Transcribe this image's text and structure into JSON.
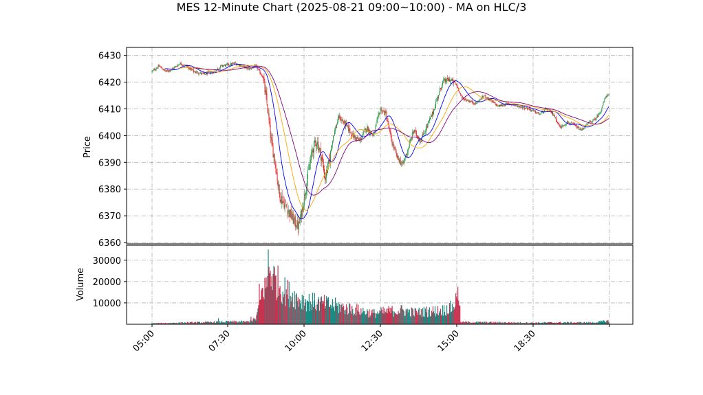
{
  "chart_data": {
    "type": "candlestick",
    "title": "MES 12-Minute Chart (2025-08-21 09:00~10:00) - MA on HLC/3",
    "price_panel": {
      "ylabel": "Price",
      "ylim": [
        6359.5,
        6433
      ],
      "yticks": [
        6360,
        6370,
        6380,
        6390,
        6400,
        6410,
        6420,
        6430
      ]
    },
    "volume_panel": {
      "ylabel": "Volume",
      "ylim": [
        0,
        37000
      ],
      "yticks": [
        10000,
        20000,
        30000
      ]
    },
    "x_axis": {
      "start_time": "04:00",
      "ticks": [
        "05:00",
        "07:30",
        "10:00",
        "12:30",
        "15:00",
        "18:30",
        ""
      ]
    },
    "colors": {
      "up": "#2e9b4f",
      "down": "#e0282b",
      "ma_fast": "#0000ff",
      "ma_mid": "#ffa500",
      "ma_slow": "#800080",
      "vol_up": "#1a8a82",
      "vol_down": "#c8324f"
    },
    "price_anchors": [
      {
        "t": 0,
        "p": 6424
      },
      {
        "t": 10,
        "p": 6426
      },
      {
        "t": 20,
        "p": 6424
      },
      {
        "t": 30,
        "p": 6425
      },
      {
        "t": 40,
        "p": 6427
      },
      {
        "t": 50,
        "p": 6426
      },
      {
        "t": 60,
        "p": 6424
      },
      {
        "t": 75,
        "p": 6423
      },
      {
        "t": 90,
        "p": 6424
      },
      {
        "t": 100,
        "p": 6426
      },
      {
        "t": 120,
        "p": 6427
      },
      {
        "t": 140,
        "p": 6425
      },
      {
        "t": 150,
        "p": 6426
      },
      {
        "t": 160,
        "p": 6422
      },
      {
        "t": 166,
        "p": 6412
      },
      {
        "t": 172,
        "p": 6398
      },
      {
        "t": 178,
        "p": 6390
      },
      {
        "t": 184,
        "p": 6378
      },
      {
        "t": 190,
        "p": 6375
      },
      {
        "t": 197,
        "p": 6372
      },
      {
        "t": 205,
        "p": 6368
      },
      {
        "t": 212,
        "p": 6366
      },
      {
        "t": 218,
        "p": 6374
      },
      {
        "t": 225,
        "p": 6385
      },
      {
        "t": 232,
        "p": 6395
      },
      {
        "t": 238,
        "p": 6398
      },
      {
        "t": 245,
        "p": 6392
      },
      {
        "t": 250,
        "p": 6384
      },
      {
        "t": 256,
        "p": 6390
      },
      {
        "t": 262,
        "p": 6400
      },
      {
        "t": 270,
        "p": 6407
      },
      {
        "t": 280,
        "p": 6404
      },
      {
        "t": 290,
        "p": 6400
      },
      {
        "t": 300,
        "p": 6398
      },
      {
        "t": 310,
        "p": 6403
      },
      {
        "t": 320,
        "p": 6400
      },
      {
        "t": 330,
        "p": 6410
      },
      {
        "t": 338,
        "p": 6408
      },
      {
        "t": 346,
        "p": 6398
      },
      {
        "t": 354,
        "p": 6392
      },
      {
        "t": 362,
        "p": 6389
      },
      {
        "t": 370,
        "p": 6395
      },
      {
        "t": 378,
        "p": 6402
      },
      {
        "t": 388,
        "p": 6398
      },
      {
        "t": 398,
        "p": 6404
      },
      {
        "t": 405,
        "p": 6408
      },
      {
        "t": 412,
        "p": 6414
      },
      {
        "t": 420,
        "p": 6420
      },
      {
        "t": 430,
        "p": 6421
      },
      {
        "t": 440,
        "p": 6419
      },
      {
        "t": 448,
        "p": 6414
      },
      {
        "t": 458,
        "p": 6413
      },
      {
        "t": 468,
        "p": 6412
      },
      {
        "t": 480,
        "p": 6415
      },
      {
        "t": 490,
        "p": 6413
      },
      {
        "t": 500,
        "p": 6411
      },
      {
        "t": 515,
        "p": 6412
      },
      {
        "t": 530,
        "p": 6411
      },
      {
        "t": 545,
        "p": 6410
      },
      {
        "t": 560,
        "p": 6408
      },
      {
        "t": 570,
        "p": 6410
      },
      {
        "t": 580,
        "p": 6408
      },
      {
        "t": 590,
        "p": 6403
      },
      {
        "t": 600,
        "p": 6405
      },
      {
        "t": 610,
        "p": 6404
      },
      {
        "t": 620,
        "p": 6402
      },
      {
        "t": 632,
        "p": 6405
      },
      {
        "t": 640,
        "p": 6406
      },
      {
        "t": 648,
        "p": 6409
      },
      {
        "t": 656,
        "p": 6415
      }
    ],
    "volume_anchors": [
      {
        "t": 0,
        "v": 400
      },
      {
        "t": 40,
        "v": 700
      },
      {
        "t": 80,
        "v": 900
      },
      {
        "t": 110,
        "v": 1200
      },
      {
        "t": 140,
        "v": 1200
      },
      {
        "t": 150,
        "v": 2500
      },
      {
        "t": 155,
        "v": 9000
      },
      {
        "t": 160,
        "v": 16000
      },
      {
        "t": 165,
        "v": 19000
      },
      {
        "t": 170,
        "v": 26000
      },
      {
        "t": 175,
        "v": 22000
      },
      {
        "t": 180,
        "v": 20000
      },
      {
        "t": 190,
        "v": 16000
      },
      {
        "t": 200,
        "v": 14000
      },
      {
        "t": 210,
        "v": 12000
      },
      {
        "t": 220,
        "v": 11000
      },
      {
        "t": 240,
        "v": 10000
      },
      {
        "t": 260,
        "v": 9000
      },
      {
        "t": 280,
        "v": 7500
      },
      {
        "t": 300,
        "v": 6500
      },
      {
        "t": 320,
        "v": 5000
      },
      {
        "t": 340,
        "v": 6000
      },
      {
        "t": 360,
        "v": 6500
      },
      {
        "t": 380,
        "v": 5500
      },
      {
        "t": 400,
        "v": 6000
      },
      {
        "t": 420,
        "v": 6500
      },
      {
        "t": 435,
        "v": 8000
      },
      {
        "t": 440,
        "v": 12000
      },
      {
        "t": 443,
        "v": 16000
      },
      {
        "t": 446,
        "v": 1000
      },
      {
        "t": 480,
        "v": 900
      },
      {
        "t": 550,
        "v": 700
      },
      {
        "t": 600,
        "v": 800
      },
      {
        "t": 640,
        "v": 800
      },
      {
        "t": 656,
        "v": 1500
      }
    ],
    "volume_spikes": [
      {
        "t": 168,
        "v": 35000
      },
      {
        "t": 171,
        "v": 25000
      },
      {
        "t": 165,
        "v": 22000
      },
      {
        "t": 442,
        "v": 17500
      },
      {
        "t": 440,
        "v": 13000
      },
      {
        "t": 96,
        "v": 2800
      },
      {
        "t": 143,
        "v": 3500
      },
      {
        "t": 155,
        "v": 19000
      },
      {
        "t": 158,
        "v": 16000
      }
    ]
  }
}
